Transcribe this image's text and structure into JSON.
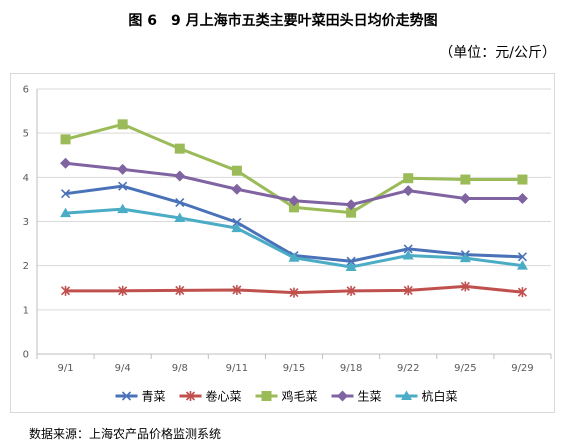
{
  "title": "图 6　9 月上海市五类主要叶菜田头日均价走势图",
  "unit": "（单位：元/公斤）",
  "source": "数据来源：上海农产品价格监测系统",
  "chart_data": {
    "type": "line",
    "categories": [
      "9/1",
      "9/4",
      "9/8",
      "9/11",
      "9/15",
      "9/18",
      "9/22",
      "9/25",
      "9/29"
    ],
    "ylim": [
      0,
      6
    ],
    "yticks": [
      "0",
      "1",
      "2",
      "3",
      "4",
      "5",
      "6"
    ],
    "grid": "horizontal",
    "legend_position": "bottom",
    "series": [
      {
        "name": "青菜",
        "color": "#4a72b8",
        "marker": "x",
        "values": [
          3.63,
          3.8,
          3.43,
          2.98,
          2.23,
          2.1,
          2.38,
          2.25,
          2.2
        ]
      },
      {
        "name": "卷心菜",
        "color": "#c0504d",
        "marker": "star",
        "values": [
          1.43,
          1.43,
          1.44,
          1.45,
          1.39,
          1.43,
          1.44,
          1.53,
          1.4
        ]
      },
      {
        "name": "鸡毛菜",
        "color": "#9bbb59",
        "marker": "square",
        "values": [
          4.86,
          5.2,
          4.65,
          4.15,
          3.32,
          3.2,
          3.98,
          3.95,
          3.95
        ]
      },
      {
        "name": "生菜",
        "color": "#8064a2",
        "marker": "diamond",
        "values": [
          4.32,
          4.18,
          4.03,
          3.73,
          3.47,
          3.38,
          3.7,
          3.52,
          3.52
        ]
      },
      {
        "name": "杭白菜",
        "color": "#4bacc6",
        "marker": "triangle",
        "values": [
          3.19,
          3.28,
          3.08,
          2.85,
          2.18,
          1.97,
          2.23,
          2.17,
          2.0
        ]
      }
    ]
  }
}
